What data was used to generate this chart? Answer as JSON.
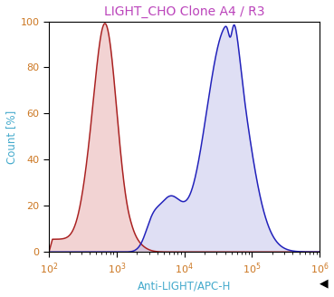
{
  "title": "LIGHT_CHO Clone A4 / R3",
  "xlabel": "Anti-LIGHT/APC-H",
  "ylabel": "Count [%]",
  "xlim_log": [
    2,
    6
  ],
  "ylim": [
    0,
    100
  ],
  "xtick_positions": [
    100,
    1000,
    10000,
    100000,
    1000000
  ],
  "ytick_positions": [
    0,
    20,
    40,
    60,
    80,
    100
  ],
  "red_line_color": "#aa2222",
  "red_fill_color": "#e8b0b0",
  "blue_line_color": "#2222bb",
  "blue_fill_color": "#b8b8e8",
  "red_fill_alpha": 0.55,
  "blue_fill_alpha": 0.45,
  "background_color": "#ffffff",
  "xlabel_color": "#44aacc",
  "ylabel_color": "#44aacc",
  "tick_label_color": "#cc7722",
  "title_color": "#bb44bb",
  "title_fontsize": 10,
  "axis_label_fontsize": 8.5,
  "tick_fontsize": 8
}
